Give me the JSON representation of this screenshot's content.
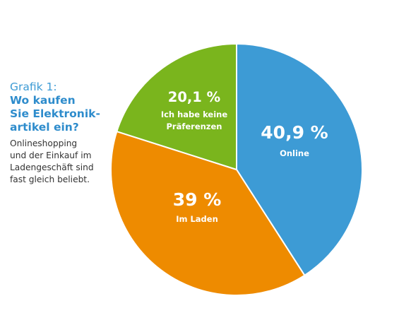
{
  "sidebar": {
    "grafik": "Grafik 1:",
    "question_lines": [
      "Wo kaufen",
      "Sie Elektronik-",
      "artikel ein?"
    ],
    "description_lines": [
      "Onlineshopping",
      "und der Einkauf im",
      "Ladengeschäft sind",
      "fast gleich beliebt."
    ]
  },
  "chart_data": {
    "type": "pie",
    "title": "Grafik 1: Wo kaufen Sie Elektronikartikel ein?",
    "slices": [
      {
        "value_label": "40,9 %",
        "label": "Online",
        "value": 40.9,
        "color": "#3d9bd5"
      },
      {
        "value_label": "39 %",
        "label": "Im Laden",
        "value": 39,
        "color": "#ee8b00"
      },
      {
        "value_label": "20,1 %",
        "label_lines": [
          "Ich habe keine",
          "Präferenzen"
        ],
        "value": 20.1,
        "color": "#7ab51d"
      }
    ]
  }
}
